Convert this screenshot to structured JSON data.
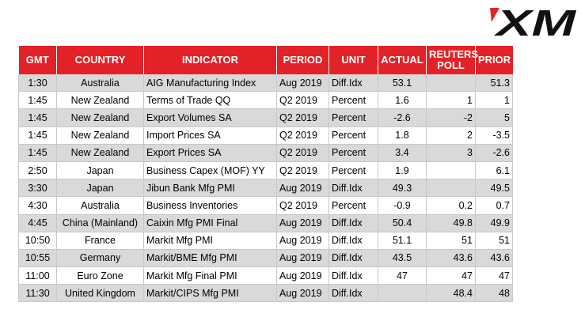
{
  "brand": {
    "logo_text": "XM",
    "accent_color": "#e32227"
  },
  "table": {
    "headers": {
      "gmt": "GMT",
      "country": "COUNTRY",
      "indicator": "INDICATOR",
      "period": "PERIOD",
      "unit": "UNIT",
      "actual": "ACTUAL",
      "poll_line1": "REUTERS",
      "poll_line2": "POLL",
      "prior": "PRIOR"
    },
    "rows": [
      {
        "gmt": "1:30",
        "country": "Australia",
        "indicator": "AIG Manufacturing Index",
        "period": "Aug 2019",
        "unit": "Diff.Idx",
        "actual": "53.1",
        "poll": "",
        "prior": "51.3"
      },
      {
        "gmt": "1:45",
        "country": "New Zealand",
        "indicator": "Terms of Trade QQ",
        "period": "Q2 2019",
        "unit": "Percent",
        "actual": "1.6",
        "poll": "1",
        "prior": "1"
      },
      {
        "gmt": "1:45",
        "country": "New Zealand",
        "indicator": "Export Volumes SA",
        "period": "Q2 2019",
        "unit": "Percent",
        "actual": "-2.6",
        "poll": "-2",
        "prior": "5"
      },
      {
        "gmt": "1:45",
        "country": "New Zealand",
        "indicator": "Import Prices SA",
        "period": "Q2 2019",
        "unit": "Percent",
        "actual": "1.8",
        "poll": "2",
        "prior": "-3.5"
      },
      {
        "gmt": "1:45",
        "country": "New Zealand",
        "indicator": "Export Prices SA",
        "period": "Q2 2019",
        "unit": "Percent",
        "actual": "3.4",
        "poll": "3",
        "prior": "-2.6"
      },
      {
        "gmt": "2:50",
        "country": "Japan",
        "indicator": "Business Capex (MOF) YY",
        "period": "Q2 2019",
        "unit": "Percent",
        "actual": "1.9",
        "poll": "",
        "prior": "6.1"
      },
      {
        "gmt": "3:30",
        "country": "Japan",
        "indicator": "Jibun Bank Mfg PMI",
        "period": "Aug 2019",
        "unit": "Diff.Idx",
        "actual": "49.3",
        "poll": "",
        "prior": "49.5"
      },
      {
        "gmt": "4:30",
        "country": "Australia",
        "indicator": "Business Inventories",
        "period": "Q2 2019",
        "unit": "Percent",
        "actual": "-0.9",
        "poll": "0.2",
        "prior": "0.7"
      },
      {
        "gmt": "4:45",
        "country": "China (Mainland)",
        "indicator": "Caixin Mfg PMI Final",
        "period": "Aug 2019",
        "unit": "Diff.Idx",
        "actual": "50.4",
        "poll": "49.8",
        "prior": "49.9"
      },
      {
        "gmt": "10:50",
        "country": "France",
        "indicator": "Markit Mfg PMI",
        "period": "Aug 2019",
        "unit": "Diff.Idx",
        "actual": "51.1",
        "poll": "51",
        "prior": "51"
      },
      {
        "gmt": "10:55",
        "country": "Germany",
        "indicator": "Markit/BME Mfg PMI",
        "period": "Aug 2019",
        "unit": "Diff.Idx",
        "actual": "43.5",
        "poll": "43.6",
        "prior": "43.6"
      },
      {
        "gmt": "11:00",
        "country": "Euro Zone",
        "indicator": "Markit Mfg Final PMI",
        "period": "Aug 2019",
        "unit": "Diff.Idx",
        "actual": "47",
        "poll": "47",
        "prior": "47"
      },
      {
        "gmt": "11:30",
        "country": "United Kingdom",
        "indicator": "Markit/CIPS Mfg PMI",
        "period": "Aug 2019",
        "unit": "Diff.Idx",
        "actual": "",
        "poll": "48.4",
        "prior": "48"
      }
    ]
  }
}
